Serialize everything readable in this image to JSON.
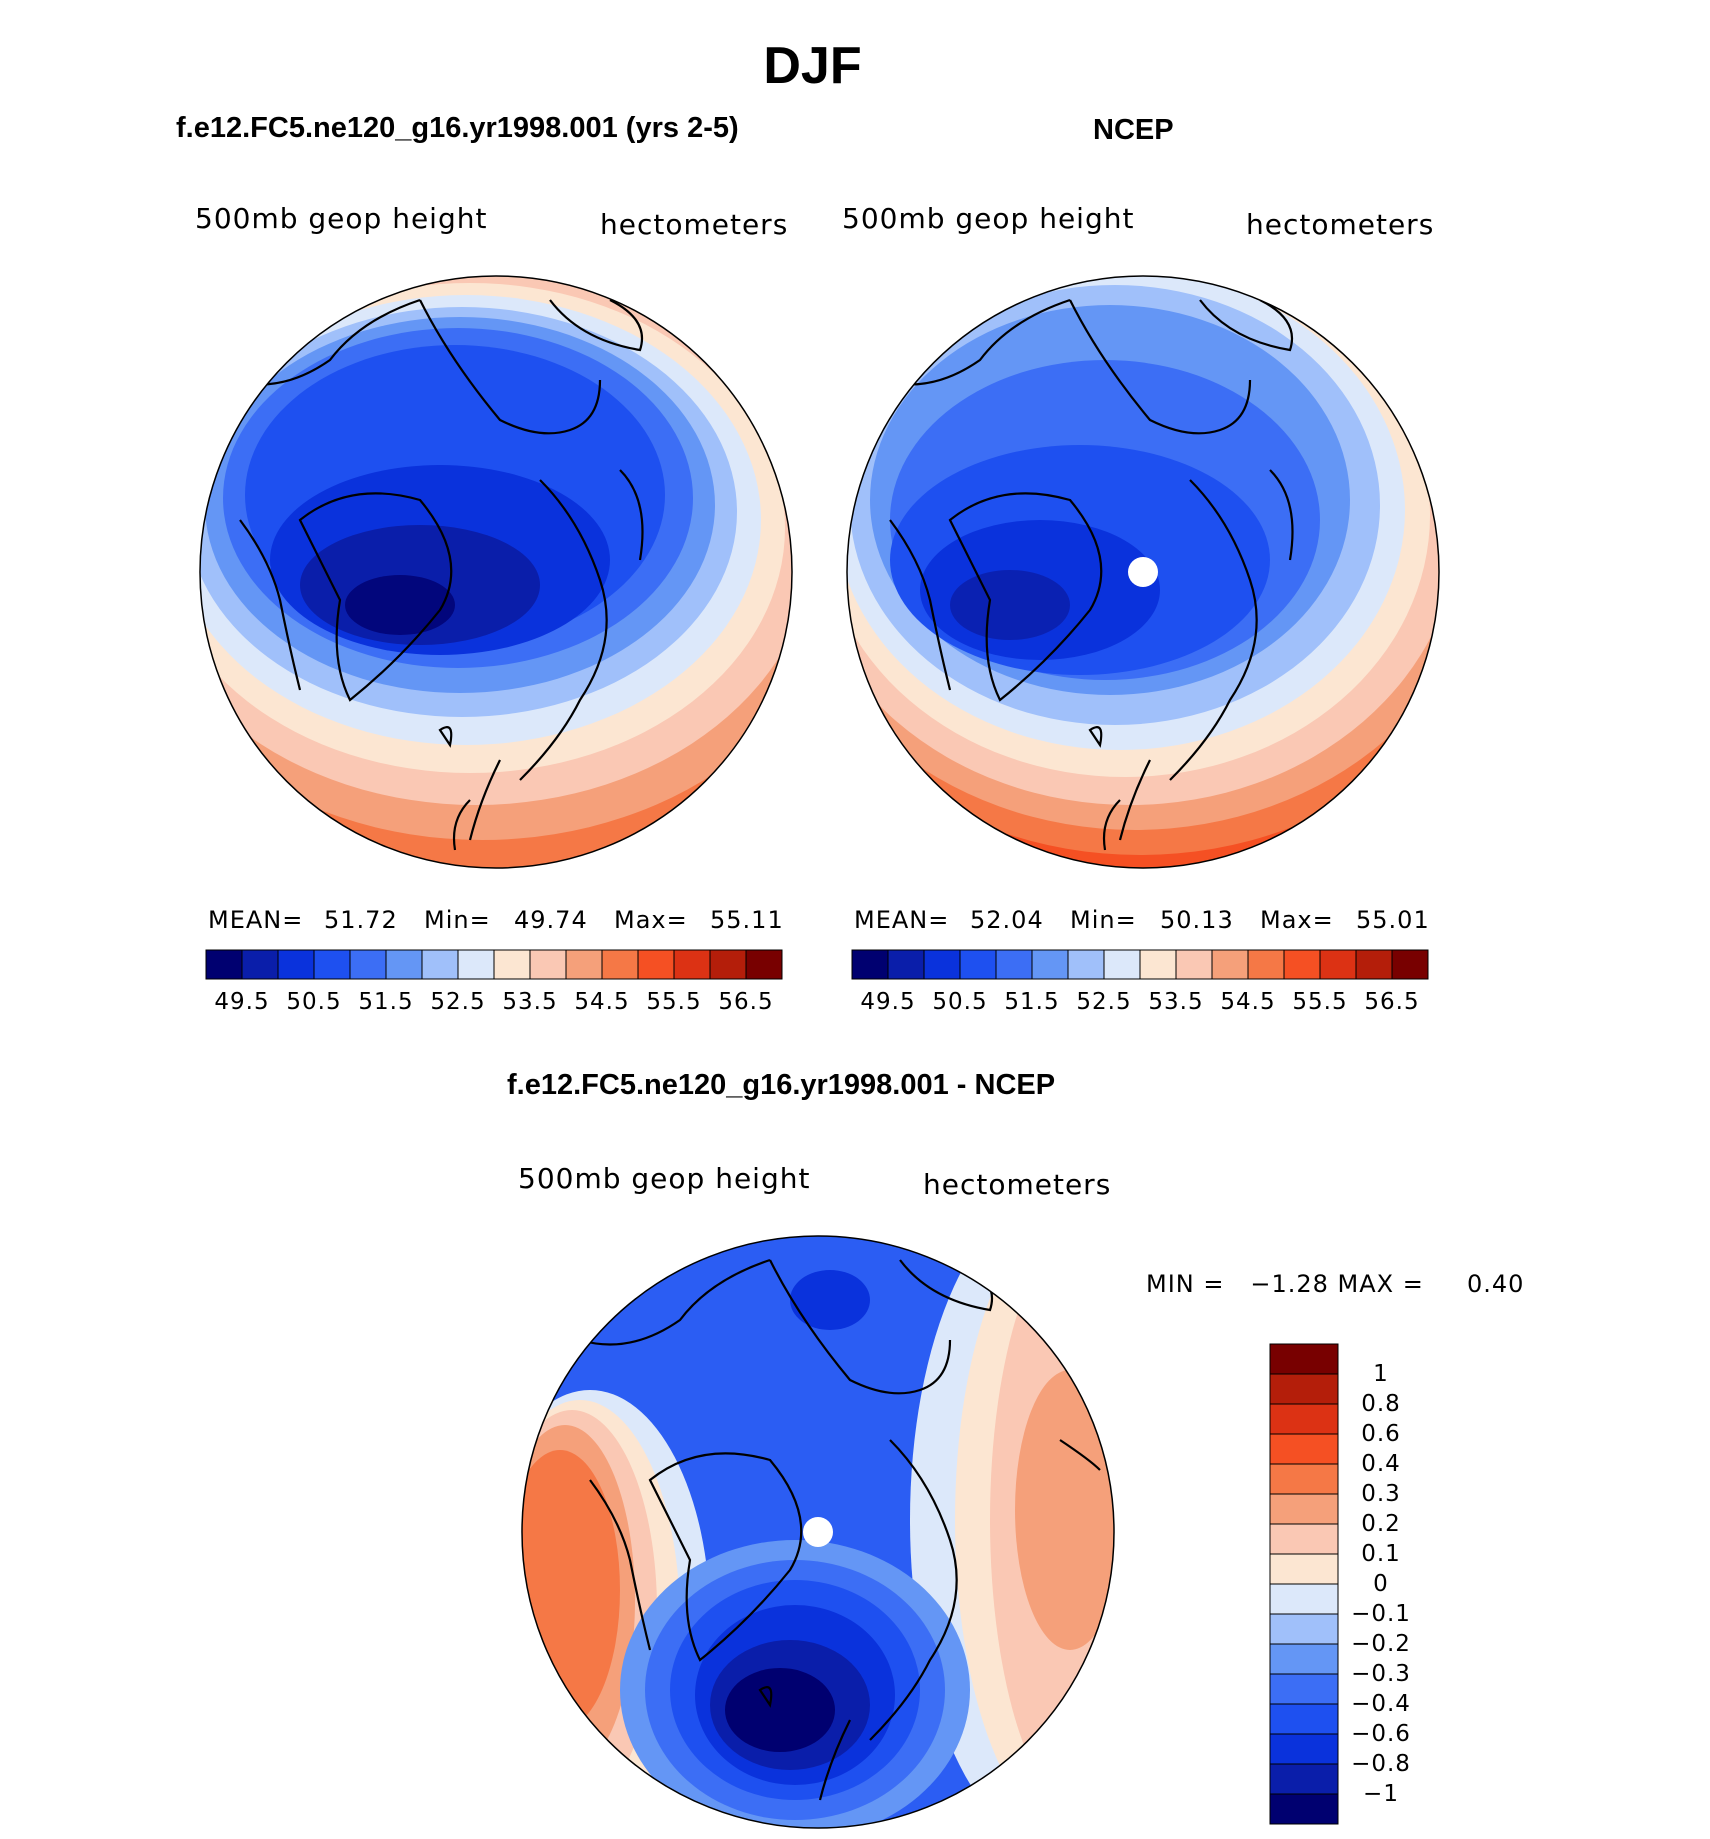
{
  "title": "DJF",
  "colors": {
    "scale": [
      "#000070",
      "#0a1eaa",
      "#0a32dc",
      "#1e50f0",
      "#3c6ef5",
      "#6496f5",
      "#a0c0fa",
      "#dce8fa",
      "#fce6d2",
      "#fac8b4",
      "#f5a07a",
      "#f57846",
      "#f55023",
      "#dc3214",
      "#b41e0a",
      "#780000"
    ]
  },
  "panels": {
    "model": {
      "title": "f.e12.FC5.ne120_g16.yr1998.001 (yrs 2-5)",
      "var_label": "500mb  geop  height",
      "units": "hectometers",
      "stats": {
        "mean_label": "MEAN=",
        "mean": "51.72",
        "min_label": "Min=",
        "min": "49.74",
        "max_label": "Max=",
        "max": "55.11"
      },
      "colorbar_ticks": [
        "49.5",
        "50.5",
        "51.5",
        "52.5",
        "53.5",
        "54.5",
        "55.5",
        "56.5"
      ]
    },
    "obs": {
      "title": "NCEP",
      "var_label": "500mb  geop  height",
      "units": "hectometers",
      "stats": {
        "mean_label": "MEAN=",
        "mean": "52.04",
        "min_label": "Min=",
        "min": "50.13",
        "max_label": "Max=",
        "max": "55.01"
      },
      "colorbar_ticks": [
        "49.5",
        "50.5",
        "51.5",
        "52.5",
        "53.5",
        "54.5",
        "55.5",
        "56.5"
      ]
    },
    "diff": {
      "title": "f.e12.FC5.ne120_g16.yr1998.001 - NCEP",
      "var_label": "500mb  geop  height",
      "units": "hectometers",
      "minmax_text": "MIN =   −1.28 MAX =     0.40",
      "colorbar_ticks": [
        "1",
        "0.8",
        "0.6",
        "0.4",
        "0.3",
        "0.2",
        "0.1",
        "0",
        "−0.1",
        "−0.2",
        "−0.3",
        "−0.4",
        "−0.6",
        "−0.8",
        "−1"
      ]
    }
  }
}
